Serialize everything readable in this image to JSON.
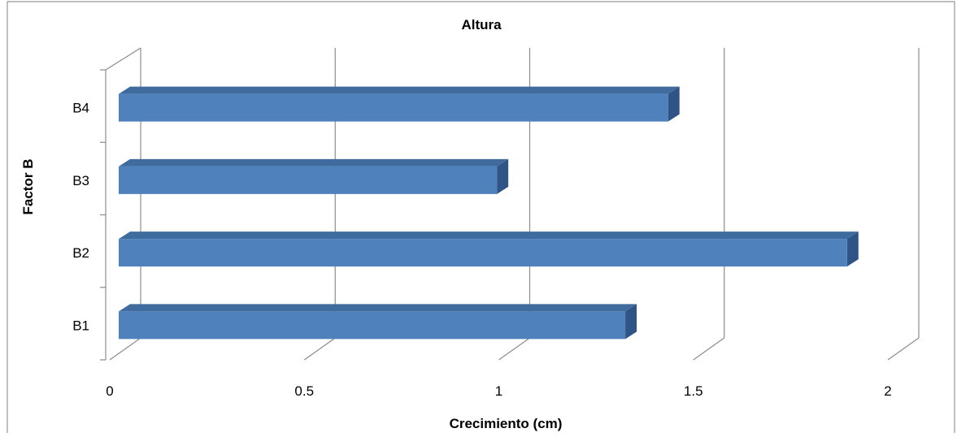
{
  "chart_data": {
    "type": "bar",
    "orientation": "horizontal",
    "style": "3d",
    "title": "Altura",
    "xlabel": "Crecimiento (cm)",
    "ylabel": "Factor B",
    "categories": [
      "B1",
      "B2",
      "B3",
      "B4"
    ],
    "values": [
      1.3,
      1.87,
      0.97,
      1.41
    ],
    "xlim": [
      0,
      2
    ],
    "xticks": [
      "0",
      "0.5",
      "1",
      "1.5",
      "2"
    ],
    "grid": true,
    "legend": "none",
    "colors": {
      "bar_front": "#4f81bd",
      "bar_top": "#3f6b9f",
      "bar_side": "#2f5486",
      "grid": "#8c8c8c",
      "border": "#7f7f7f"
    }
  }
}
